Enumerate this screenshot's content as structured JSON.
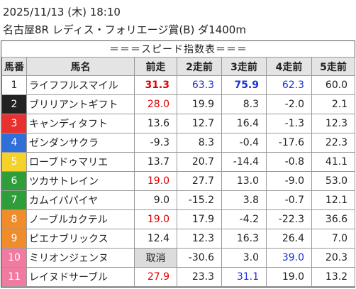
{
  "header": {
    "datetime": "2025/11/13 (木) 18:10",
    "race": "名古屋8R レディス・フォリエージ賞(B) ダ1400m"
  },
  "table": {
    "title": "＝＝＝スピード指数表＝＝＝",
    "columns": [
      "馬番",
      "馬名",
      "前走",
      "2走前",
      "3走前",
      "4走前",
      "5走前"
    ],
    "rows": [
      {
        "number": "1",
        "frame_color": "#ffffff",
        "frame_text_color": "#222222",
        "name": "ライフフルスマイル",
        "cells": [
          "31.3",
          "63.3",
          "75.9",
          "62.3",
          "60.0"
        ],
        "cell_colors": [
          "#e00000",
          "#1a2fd6",
          "#1a2fd6",
          "#1a2fd6",
          null
        ],
        "bold_cells": [
          0,
          2
        ],
        "shaded_cells": []
      },
      {
        "number": "2",
        "frame_color": "#222222",
        "frame_text_color": "#ffffff",
        "name": "ブリリアントギフト",
        "cells": [
          "28.0",
          "19.9",
          "8.3",
          "-2.0",
          "2.1"
        ],
        "cell_colors": [
          "#e00000",
          null,
          null,
          null,
          null
        ],
        "bold_cells": [],
        "shaded_cells": []
      },
      {
        "number": "3",
        "frame_color": "#e8302e",
        "frame_text_color": "#ffffff",
        "name": "キャンディタフト",
        "cells": [
          "13.6",
          "12.7",
          "16.4",
          "-1.3",
          "12.3"
        ],
        "cell_colors": [
          null,
          null,
          null,
          null,
          null
        ],
        "bold_cells": [],
        "shaded_cells": []
      },
      {
        "number": "4",
        "frame_color": "#2f6fd8",
        "frame_text_color": "#ffffff",
        "name": "ゼンダンサクラ",
        "cells": [
          "-9.3",
          "8.3",
          "-0.4",
          "-17.6",
          "22.3"
        ],
        "cell_colors": [
          null,
          null,
          null,
          null,
          null
        ],
        "bold_cells": [],
        "shaded_cells": []
      },
      {
        "number": "5",
        "frame_color": "#f4d22a",
        "frame_text_color": "#ffffff",
        "name": "ローブドゥマリエ",
        "cells": [
          "13.7",
          "20.7",
          "-14.4",
          "-0.8",
          "41.1"
        ],
        "cell_colors": [
          null,
          null,
          null,
          null,
          null
        ],
        "bold_cells": [],
        "shaded_cells": []
      },
      {
        "number": "6",
        "frame_color": "#2f9e3a",
        "frame_text_color": "#ffffff",
        "name": "ツカサトレイン",
        "cells": [
          "19.0",
          "27.7",
          "13.0",
          "-9.0",
          "53.0"
        ],
        "cell_colors": [
          "#e00000",
          null,
          null,
          null,
          null
        ],
        "bold_cells": [],
        "shaded_cells": []
      },
      {
        "number": "7",
        "frame_color": "#2f9e3a",
        "frame_text_color": "#ffffff",
        "name": "カムイパパイヤ",
        "cells": [
          "9.0",
          "-15.2",
          "3.8",
          "-0.7",
          "12.1"
        ],
        "cell_colors": [
          null,
          null,
          null,
          null,
          null
        ],
        "bold_cells": [],
        "shaded_cells": []
      },
      {
        "number": "8",
        "frame_color": "#f08c2a",
        "frame_text_color": "#ffffff",
        "name": "ノーブルカクテル",
        "cells": [
          "19.0",
          "17.9",
          "-4.2",
          "-22.3",
          "36.6"
        ],
        "cell_colors": [
          "#e00000",
          null,
          null,
          null,
          null
        ],
        "bold_cells": [],
        "shaded_cells": []
      },
      {
        "number": "9",
        "frame_color": "#f08c2a",
        "frame_text_color": "#ffffff",
        "name": "ピエナブリックス",
        "cells": [
          "12.4",
          "12.3",
          "16.3",
          "26.4",
          "7.0"
        ],
        "cell_colors": [
          null,
          null,
          null,
          null,
          null
        ],
        "bold_cells": [],
        "shaded_cells": []
      },
      {
        "number": "10",
        "frame_color": "#f07aa0",
        "frame_text_color": "#ffffff",
        "name": "ミリオンジェンヌ",
        "cells": [
          "取消",
          "-30.6",
          "3.0",
          "39.0",
          "20.3"
        ],
        "cell_colors": [
          null,
          null,
          null,
          "#1a2fd6",
          null
        ],
        "bold_cells": [],
        "shaded_cells": [
          0
        ]
      },
      {
        "number": "11",
        "frame_color": "#f07aa0",
        "frame_text_color": "#ffffff",
        "name": "レイヌドサーブル",
        "cells": [
          "27.9",
          "23.3",
          "31.1",
          "19.0",
          "13.2"
        ],
        "cell_colors": [
          "#e00000",
          null,
          "#1a2fd6",
          null,
          null
        ],
        "bold_cells": [],
        "shaded_cells": []
      }
    ]
  }
}
